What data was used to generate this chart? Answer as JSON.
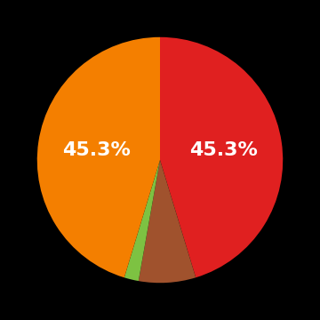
{
  "slices": [
    45.3,
    7.5,
    1.9,
    45.3
  ],
  "colors": [
    "#e02020",
    "#a0522d",
    "#7dc242",
    "#f47f00"
  ],
  "labels": [
    "45.3%",
    "",
    "",
    "45.3%"
  ],
  "startangle": 90,
  "background_color": "#000000",
  "text_color": "#ffffff",
  "label_fontsize": 16,
  "label_fontweight": "bold",
  "label_positions": [
    [
      0.38,
      0.07
    ],
    [
      null,
      null
    ],
    [
      null,
      null
    ],
    [
      -0.38,
      -0.05
    ]
  ]
}
